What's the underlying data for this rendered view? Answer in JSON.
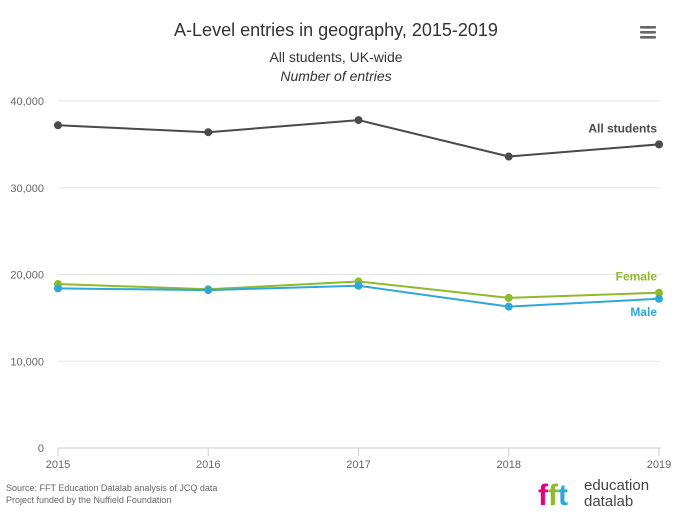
{
  "chart_data": {
    "type": "line",
    "title": "A-Level entries in geography, 2015-2019",
    "subtitle": "All students, UK-wide",
    "ylabel": "Number of entries",
    "xlabel": "",
    "categories": [
      "2015",
      "2016",
      "2017",
      "2018",
      "2019"
    ],
    "y_tick_labels": [
      "0",
      "10,000",
      "20,000",
      "30,000",
      "40,000"
    ],
    "y_ticks": [
      0,
      10000,
      20000,
      30000,
      40000
    ],
    "ylim": [
      0,
      40000
    ],
    "grid": true,
    "series": [
      {
        "name": "All students",
        "values": [
          37200,
          36400,
          37800,
          33600,
          35000
        ],
        "color": "#4a4a4a"
      },
      {
        "name": "Female",
        "values": [
          18900,
          18300,
          19200,
          17300,
          17900
        ],
        "color": "#8fba2a"
      },
      {
        "name": "Male",
        "values": [
          18400,
          18200,
          18700,
          16300,
          17200
        ],
        "color": "#2fa7d8"
      }
    ],
    "credits": [
      "Source: FFT Education Datalab analysis of JCQ data",
      "Project funded by the Nuffield Foundation"
    ]
  },
  "logo": {
    "mark": "fft",
    "line1": "education",
    "line2": "datalab",
    "colors": [
      "#e5007e",
      "#8fba2a",
      "#2fa7d8"
    ]
  },
  "menu_icon": "hamburger-menu-icon"
}
